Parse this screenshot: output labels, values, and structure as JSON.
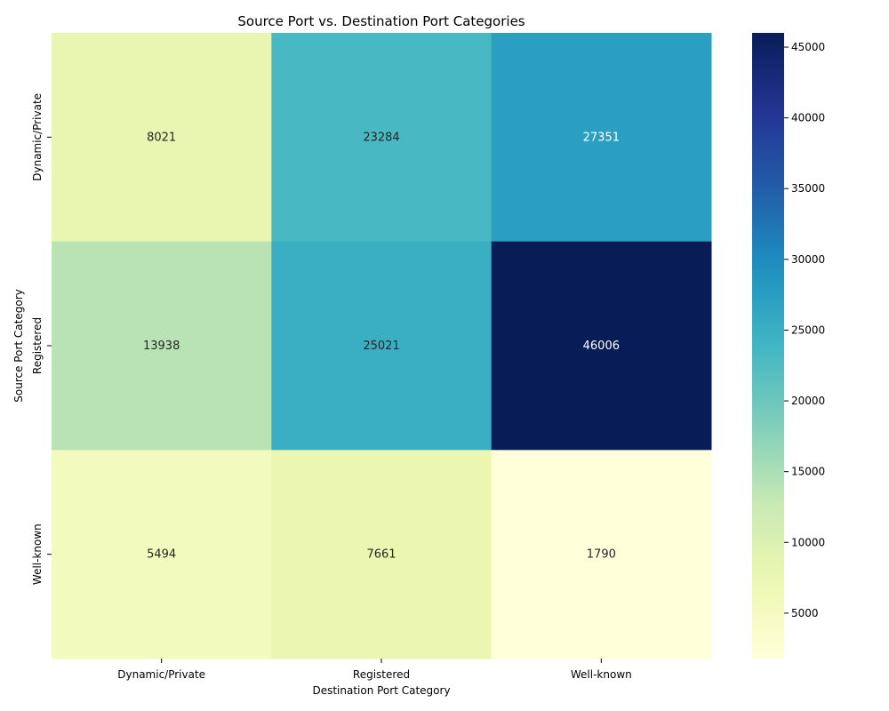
{
  "chart_data": {
    "type": "heatmap",
    "title": "Source Port vs. Destination Port Categories",
    "xlabel": "Destination Port Category",
    "ylabel": "Source Port Category",
    "x_categories": [
      "Dynamic/Private",
      "Registered",
      "Well-known"
    ],
    "y_categories": [
      "Dynamic/Private",
      "Registered",
      "Well-known"
    ],
    "values": [
      [
        8021,
        23284,
        27351
      ],
      [
        13938,
        25021,
        46006
      ],
      [
        5494,
        7661,
        1790
      ]
    ],
    "colormap": "YlGnBu",
    "color_range": [
      1790,
      46006
    ],
    "colorbar_ticks": [
      5000,
      10000,
      15000,
      20000,
      25000,
      30000,
      35000,
      40000,
      45000
    ]
  }
}
